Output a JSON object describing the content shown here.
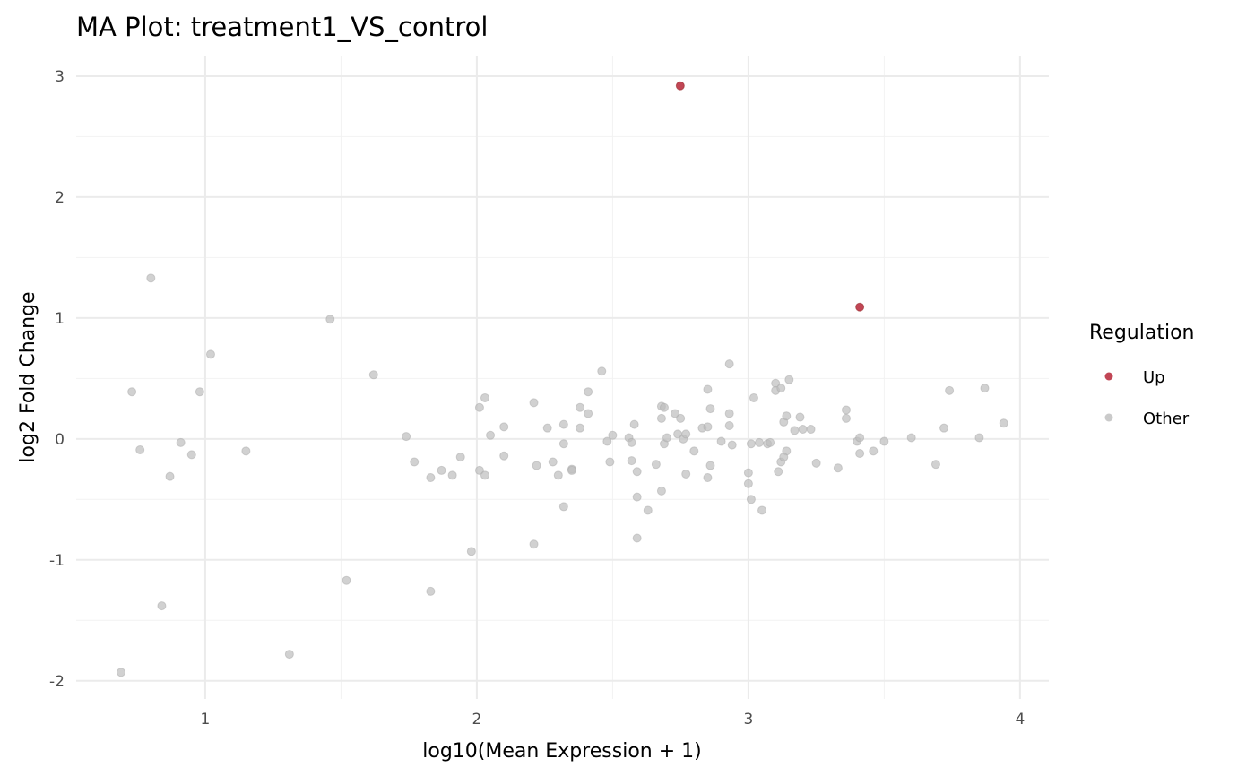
{
  "chart_data": {
    "type": "scatter",
    "title": "MA Plot: treatment1_VS_control",
    "xlabel": "log10(Mean Expression + 1)",
    "ylabel": "log2 Fold Change",
    "xlim": [
      0.525,
      4.106
    ],
    "ylim": [
      -2.15,
      3.17
    ],
    "x_ticks": [
      1,
      2,
      3,
      4
    ],
    "y_ticks": [
      -2,
      -1,
      0,
      1,
      2,
      3
    ],
    "grid": true,
    "legend": {
      "title": "Regulation",
      "placement": "right",
      "entries": [
        {
          "label": "Up",
          "color": "#b2182b"
        },
        {
          "label": "Other",
          "color": "#bdbdbd"
        }
      ]
    },
    "series": [
      {
        "name": "Up",
        "color": "#b2182b",
        "points": [
          [
            2.749,
            2.92
          ],
          [
            3.41,
            1.09
          ]
        ]
      },
      {
        "name": "Other",
        "color": "#bdbdbd",
        "points": [
          [
            0.69,
            -1.93
          ],
          [
            0.73,
            0.39
          ],
          [
            0.76,
            -0.09
          ],
          [
            0.8,
            1.33
          ],
          [
            0.84,
            -1.38
          ],
          [
            0.87,
            -0.31
          ],
          [
            0.91,
            -0.03
          ],
          [
            0.95,
            -0.13
          ],
          [
            0.98,
            0.39
          ],
          [
            1.02,
            0.7
          ],
          [
            1.15,
            -0.1
          ],
          [
            1.46,
            0.99
          ],
          [
            1.52,
            -1.17
          ],
          [
            1.31,
            -1.78
          ],
          [
            1.62,
            0.53
          ],
          [
            1.74,
            0.02
          ],
          [
            1.77,
            -0.19
          ],
          [
            1.83,
            -0.32
          ],
          [
            1.83,
            -1.26
          ],
          [
            1.87,
            -0.26
          ],
          [
            1.91,
            -0.3
          ],
          [
            1.94,
            -0.15
          ],
          [
            1.98,
            -0.93
          ],
          [
            2.01,
            0.26
          ],
          [
            2.01,
            -0.26
          ],
          [
            2.03,
            0.34
          ],
          [
            2.03,
            -0.3
          ],
          [
            2.05,
            0.03
          ],
          [
            2.1,
            0.1
          ],
          [
            2.1,
            -0.14
          ],
          [
            2.21,
            0.3
          ],
          [
            2.21,
            -0.87
          ],
          [
            2.22,
            -0.22
          ],
          [
            2.26,
            0.09
          ],
          [
            2.28,
            -0.19
          ],
          [
            2.3,
            -0.3
          ],
          [
            2.32,
            0.12
          ],
          [
            2.32,
            -0.04
          ],
          [
            2.32,
            -0.56
          ],
          [
            2.35,
            -0.25
          ],
          [
            2.35,
            -0.26
          ],
          [
            2.38,
            0.09
          ],
          [
            2.38,
            0.26
          ],
          [
            2.41,
            0.39
          ],
          [
            2.41,
            0.21
          ],
          [
            2.46,
            0.56
          ],
          [
            2.48,
            -0.02
          ],
          [
            2.49,
            -0.19
          ],
          [
            2.5,
            0.03
          ],
          [
            2.56,
            0.01
          ],
          [
            2.57,
            -0.03
          ],
          [
            2.57,
            -0.18
          ],
          [
            2.58,
            0.12
          ],
          [
            2.59,
            -0.48
          ],
          [
            2.59,
            -0.82
          ],
          [
            2.59,
            -0.27
          ],
          [
            2.63,
            -0.59
          ],
          [
            2.66,
            -0.21
          ],
          [
            2.68,
            0.27
          ],
          [
            2.69,
            0.26
          ],
          [
            2.68,
            0.17
          ],
          [
            2.68,
            -0.43
          ],
          [
            2.69,
            -0.04
          ],
          [
            2.7,
            0.01
          ],
          [
            2.73,
            0.21
          ],
          [
            2.74,
            0.04
          ],
          [
            2.75,
            0.17
          ],
          [
            2.76,
            0.0
          ],
          [
            2.77,
            0.04
          ],
          [
            2.77,
            -0.29
          ],
          [
            2.8,
            -0.1
          ],
          [
            2.83,
            0.09
          ],
          [
            2.85,
            0.1
          ],
          [
            2.85,
            0.41
          ],
          [
            2.86,
            0.25
          ],
          [
            2.85,
            -0.32
          ],
          [
            2.86,
            -0.22
          ],
          [
            2.9,
            -0.02
          ],
          [
            2.93,
            0.62
          ],
          [
            2.93,
            0.21
          ],
          [
            2.93,
            0.11
          ],
          [
            2.94,
            -0.05
          ],
          [
            3.0,
            -0.28
          ],
          [
            3.0,
            -0.37
          ],
          [
            3.01,
            -0.04
          ],
          [
            3.01,
            -0.5
          ],
          [
            3.02,
            0.34
          ],
          [
            3.04,
            -0.03
          ],
          [
            3.05,
            -0.59
          ],
          [
            3.07,
            -0.04
          ],
          [
            3.08,
            -0.03
          ],
          [
            3.11,
            -0.27
          ],
          [
            3.1,
            0.46
          ],
          [
            3.1,
            0.4
          ],
          [
            3.12,
            0.42
          ],
          [
            3.12,
            -0.19
          ],
          [
            3.13,
            0.14
          ],
          [
            3.14,
            0.19
          ],
          [
            3.14,
            -0.1
          ],
          [
            3.13,
            -0.15
          ],
          [
            3.15,
            0.49
          ],
          [
            3.17,
            0.07
          ],
          [
            3.19,
            0.18
          ],
          [
            3.2,
            0.08
          ],
          [
            3.23,
            0.08
          ],
          [
            3.25,
            -0.2
          ],
          [
            3.33,
            -0.24
          ],
          [
            3.36,
            0.24
          ],
          [
            3.36,
            0.17
          ],
          [
            3.4,
            -0.02
          ],
          [
            3.41,
            0.01
          ],
          [
            3.41,
            -0.12
          ],
          [
            3.46,
            -0.1
          ],
          [
            3.5,
            -0.02
          ],
          [
            3.6,
            0.01
          ],
          [
            3.69,
            -0.21
          ],
          [
            3.72,
            0.09
          ],
          [
            3.74,
            0.4
          ],
          [
            3.85,
            0.01
          ],
          [
            3.87,
            0.42
          ],
          [
            3.94,
            0.13
          ]
        ]
      }
    ]
  }
}
